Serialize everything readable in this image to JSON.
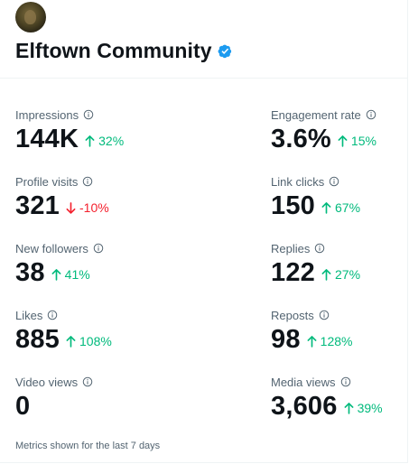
{
  "account": {
    "name": "Elftown Community",
    "verified": true,
    "accent_color": "#1d9bf0"
  },
  "metrics": [
    {
      "label": "Impressions",
      "value": "144K",
      "change": "32%",
      "direction": "up"
    },
    {
      "label": "Engagement rate",
      "value": "3.6%",
      "change": "15%",
      "direction": "up"
    },
    {
      "label": "Profile visits",
      "value": "321",
      "change": "-10%",
      "direction": "down"
    },
    {
      "label": "Link clicks",
      "value": "150",
      "change": "67%",
      "direction": "up"
    },
    {
      "label": "New followers",
      "value": "38",
      "change": "41%",
      "direction": "up"
    },
    {
      "label": "Replies",
      "value": "122",
      "change": "27%",
      "direction": "up"
    },
    {
      "label": "Likes",
      "value": "885",
      "change": "108%",
      "direction": "up"
    },
    {
      "label": "Reposts",
      "value": "98",
      "change": "128%",
      "direction": "up"
    },
    {
      "label": "Video views",
      "value": "0",
      "change": "",
      "direction": "none"
    },
    {
      "label": "Media views",
      "value": "3,606",
      "change": "39%",
      "direction": "up"
    }
  ],
  "colors": {
    "up": "#00ba7c",
    "down": "#f4212e",
    "label": "#536471",
    "text": "#0f1419"
  },
  "icons": {
    "info": "info-circle-icon",
    "up": "arrow-up-icon",
    "down": "arrow-down-icon",
    "verified": "verified-badge-icon"
  },
  "footer": "Metrics shown for the last 7 days"
}
